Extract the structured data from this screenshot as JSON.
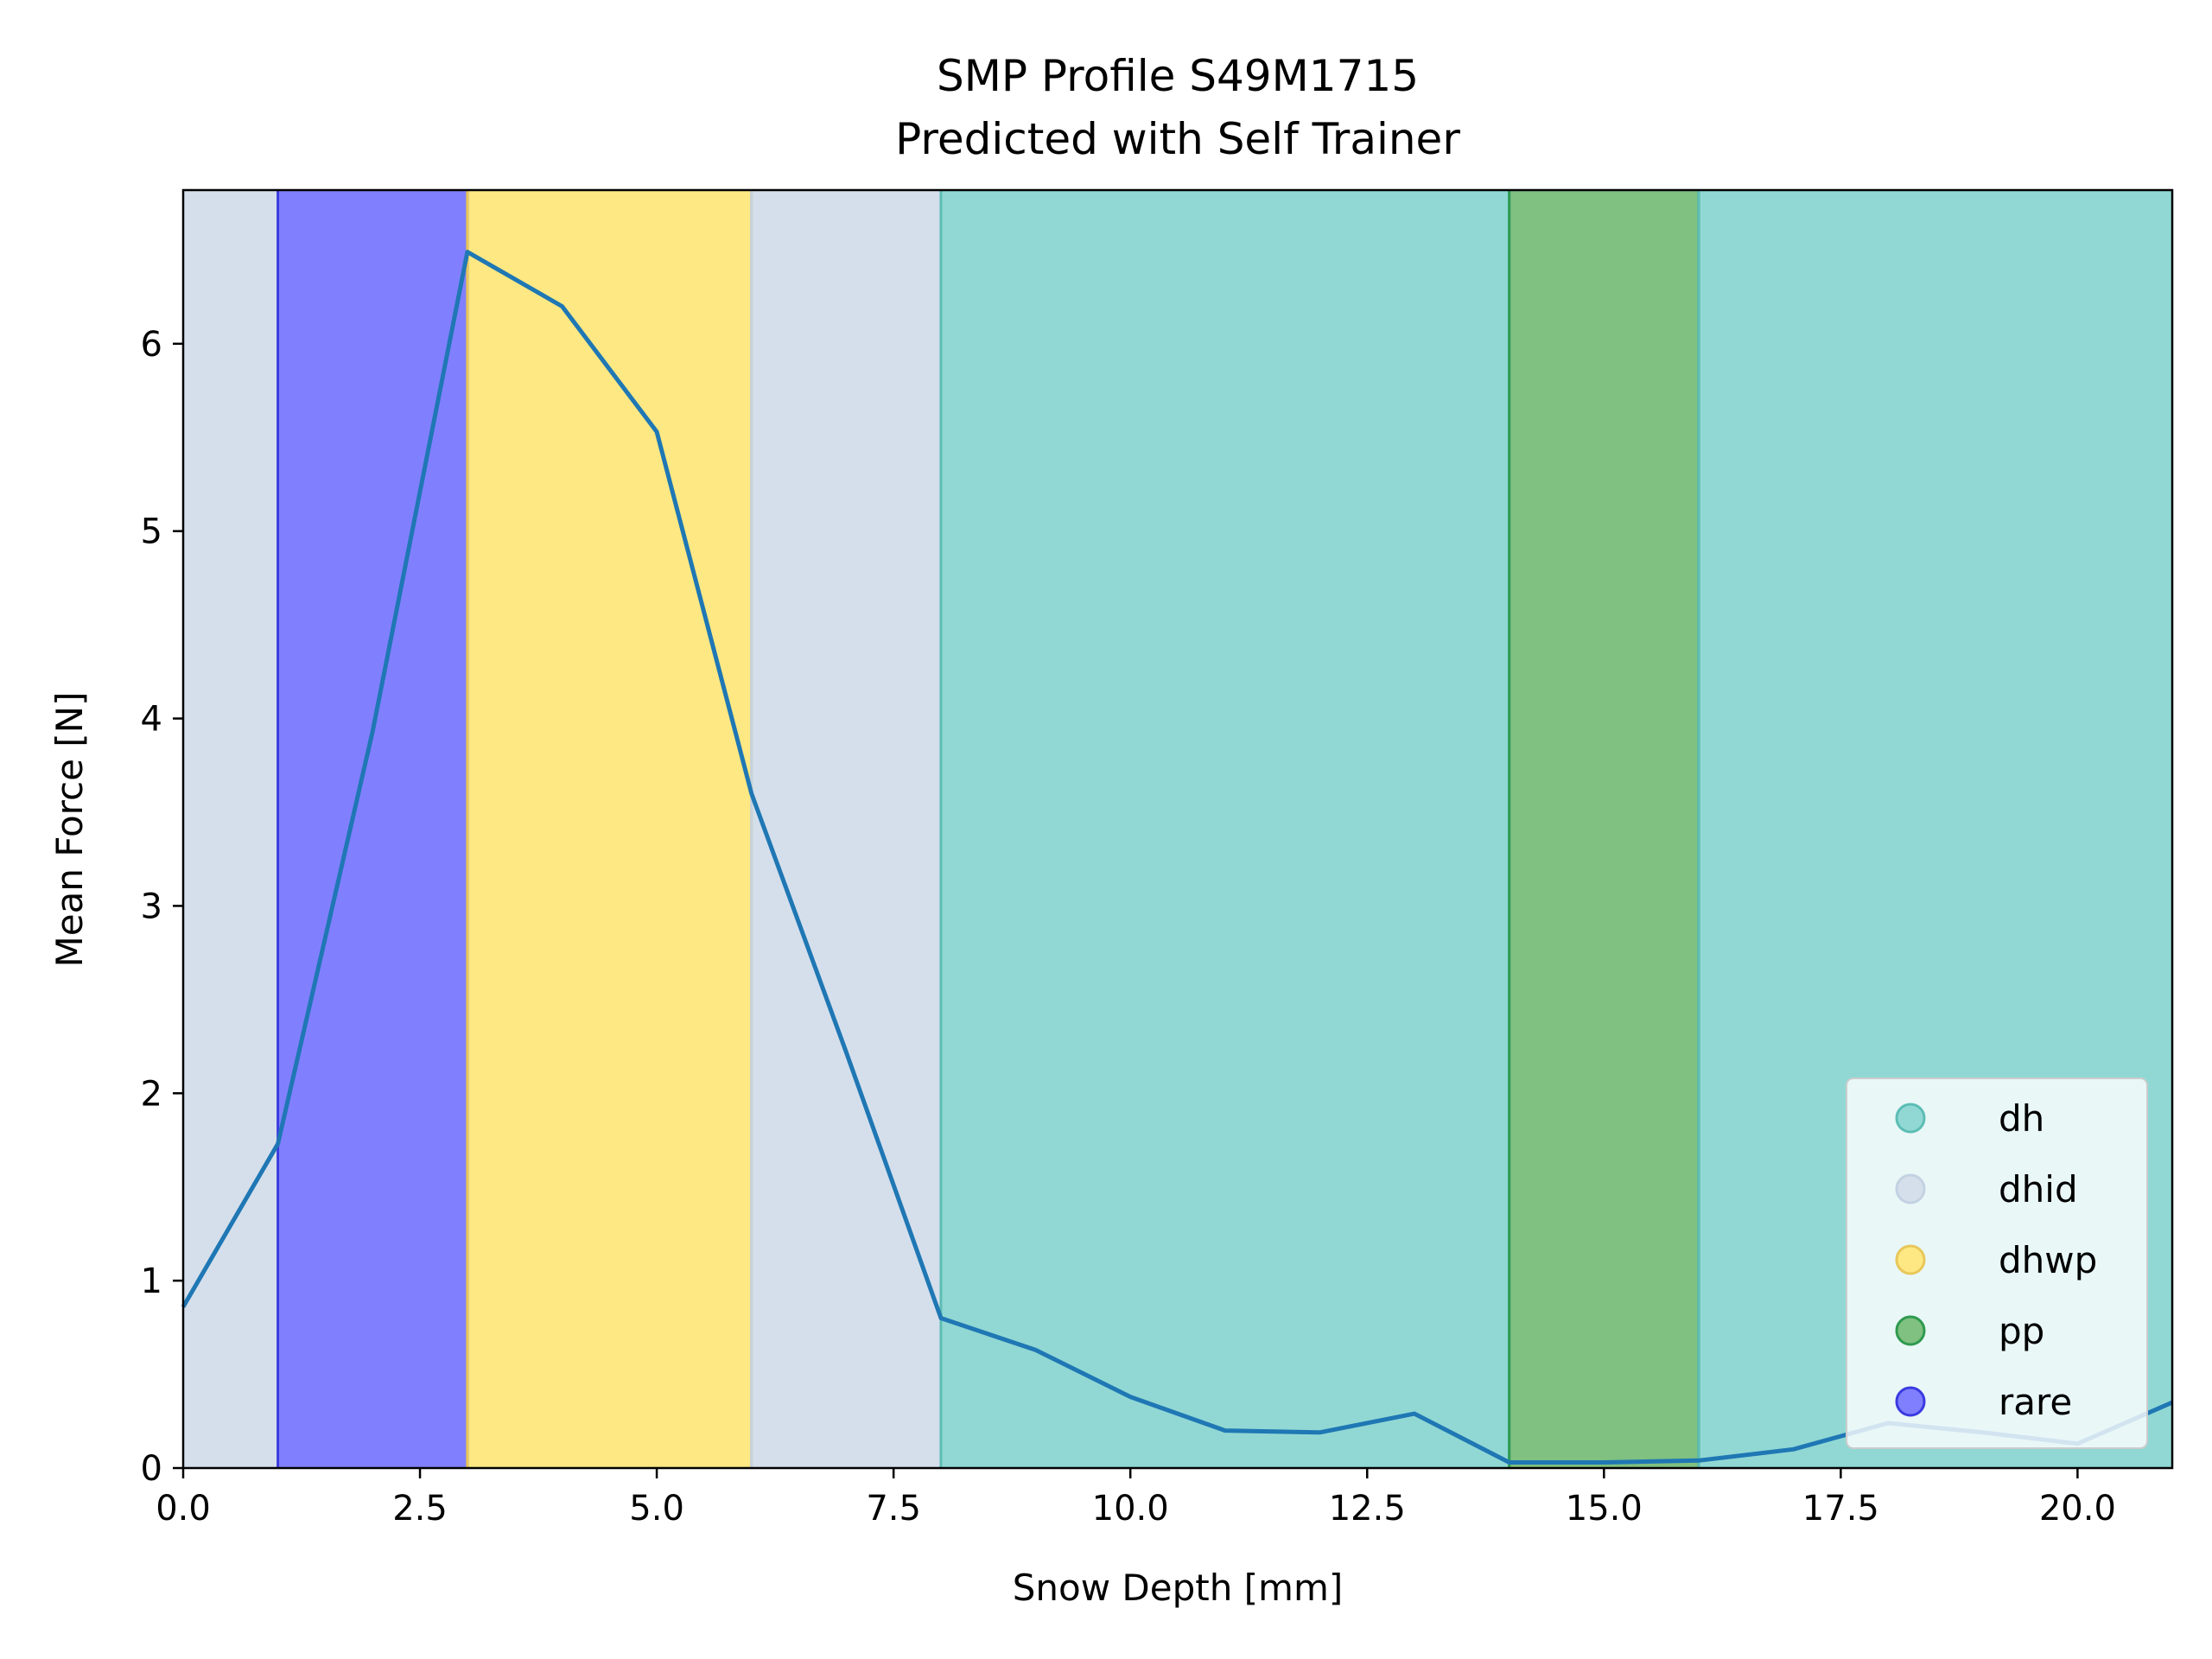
{
  "chart_data": {
    "type": "line",
    "title": "SMP Profile S49M1715",
    "subtitle": "Predicted with Self Trainer",
    "xlabel": "Snow Depth [mm]",
    "ylabel": "Mean Force [N]",
    "xlim": [
      0,
      21
    ],
    "ylim": [
      0,
      6.82
    ],
    "x_ticks": [
      0.0,
      2.5,
      5.0,
      7.5,
      10.0,
      12.5,
      15.0,
      17.5,
      20.0
    ],
    "x_tick_labels": [
      "0.0",
      "2.5",
      "5.0",
      "7.5",
      "10.0",
      "12.5",
      "15.0",
      "17.5",
      "20.0"
    ],
    "y_ticks": [
      0,
      1,
      2,
      3,
      4,
      5,
      6
    ],
    "y_tick_labels": [
      "0",
      "1",
      "2",
      "3",
      "4",
      "5",
      "6"
    ],
    "grid": false,
    "legend_position": "bottom-right",
    "line_color": "#1f77b4",
    "series": [
      {
        "x": [
          0,
          1,
          2,
          3,
          4,
          5,
          6,
          7,
          8,
          9,
          10,
          11,
          12,
          13,
          14,
          15,
          16,
          17,
          18,
          19,
          20,
          21
        ],
        "values": [
          0.86,
          1.73,
          3.93,
          6.49,
          6.2,
          5.53,
          3.6,
          2.22,
          0.8,
          0.63,
          0.38,
          0.2,
          0.19,
          0.29,
          0.03,
          0.03,
          0.04,
          0.1,
          0.24,
          0.19,
          0.13,
          0.35
        ]
      }
    ],
    "classes": [
      {
        "name": "dh",
        "color": "#91d8d4",
        "edge": "#5cbdb5"
      },
      {
        "name": "dhid",
        "color": "#d5dfeb",
        "edge": "#c3d2e2"
      },
      {
        "name": "dhwp",
        "color": "#fde883",
        "edge": "#e8c75a"
      },
      {
        "name": "pp",
        "color": "#80c080",
        "edge": "#2e9a4e"
      },
      {
        "name": "rare",
        "color": "#8080ff",
        "edge": "#3a3ae0"
      }
    ],
    "segments": [
      {
        "label": "dhid",
        "start": 0,
        "end": 1
      },
      {
        "label": "rare",
        "start": 1,
        "end": 3
      },
      {
        "label": "dhwp",
        "start": 3,
        "end": 6
      },
      {
        "label": "dhid",
        "start": 6,
        "end": 8
      },
      {
        "label": "dh",
        "start": 8,
        "end": 14
      },
      {
        "label": "pp",
        "start": 14,
        "end": 16
      },
      {
        "label": "dh",
        "start": 16,
        "end": 21
      }
    ]
  }
}
